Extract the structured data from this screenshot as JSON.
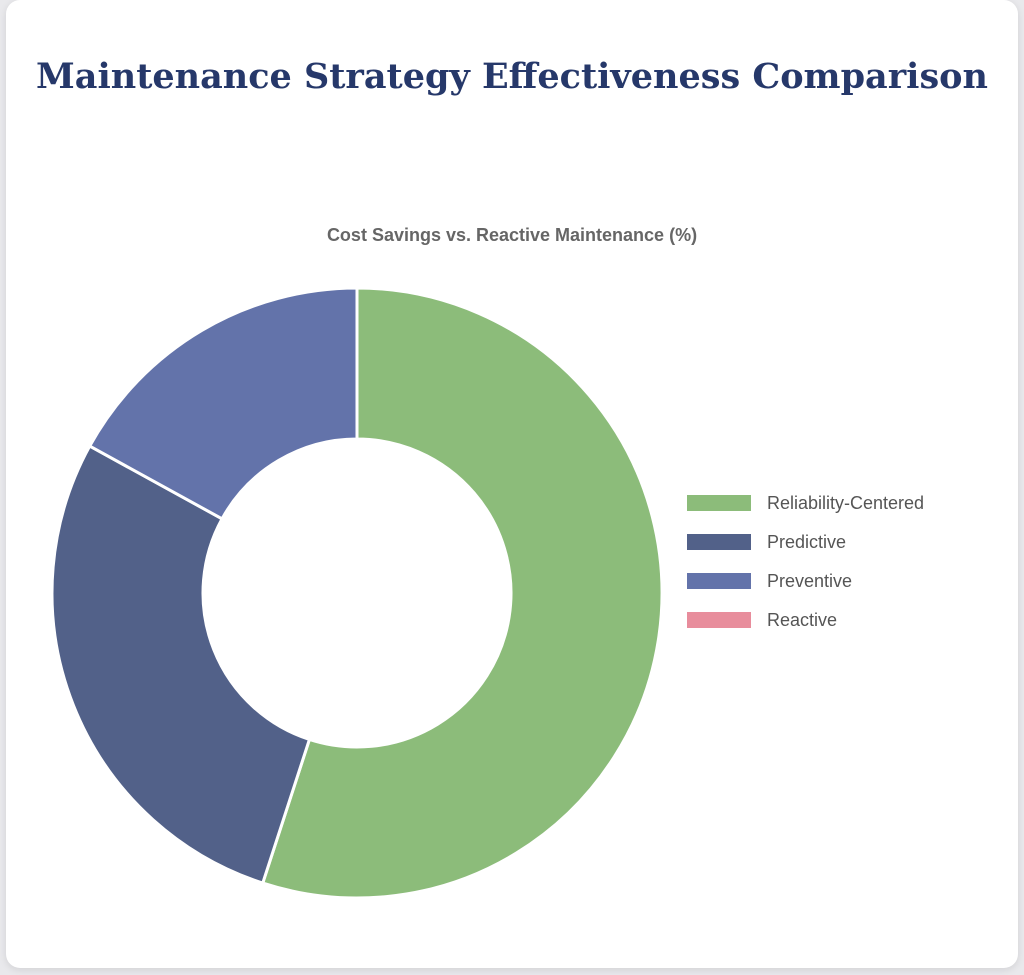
{
  "chart_data": {
    "type": "pie",
    "variant": "doughnut",
    "title": "Maintenance Strategy Effectiveness Comparison",
    "subtitle": "Cost Savings vs. Reactive Maintenance (%)",
    "categories": [
      "Reliability-Centered",
      "Predictive",
      "Preventive",
      "Reactive"
    ],
    "values": [
      55,
      28,
      17,
      0
    ],
    "colors": [
      "#8cbc7a",
      "#526189",
      "#6373aa",
      "#e88d9c"
    ],
    "legend_position": "right"
  }
}
